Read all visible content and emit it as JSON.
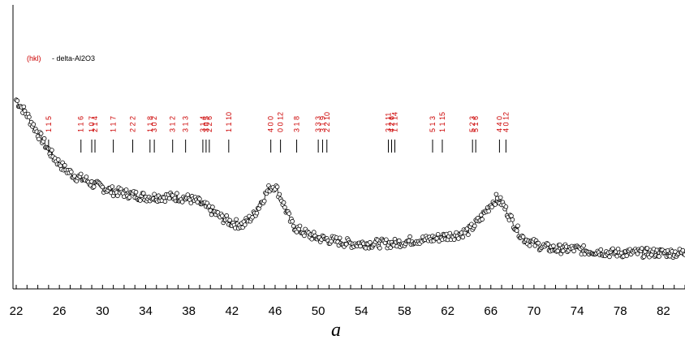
{
  "caption": "a",
  "chart_data": {
    "type": "scatter",
    "title": "",
    "xlabel": "",
    "ylabel": "",
    "xlim": [
      22,
      84
    ],
    "ylim": [
      0,
      100
    ],
    "x_ticks": [
      22,
      26,
      30,
      34,
      38,
      42,
      46,
      50,
      54,
      58,
      62,
      66,
      70,
      74,
      78,
      82
    ],
    "grid": false,
    "legend": {
      "position": "top-left",
      "hkl": "(hkl)",
      "phase": "- delta-Al2O3"
    },
    "series": [
      {
        "points": [
          [
            22,
            90
          ],
          [
            22.5,
            86
          ],
          [
            23,
            82
          ],
          [
            23.5,
            77
          ],
          [
            24,
            72
          ],
          [
            24.5,
            68
          ],
          [
            25,
            63
          ],
          [
            25.5,
            59
          ],
          [
            26,
            56
          ],
          [
            26.5,
            53
          ],
          [
            27,
            51
          ],
          [
            27.5,
            49
          ],
          [
            28,
            48
          ],
          [
            28.5,
            47
          ],
          [
            29,
            45
          ],
          [
            29.5,
            44
          ],
          [
            30,
            43
          ],
          [
            31,
            41
          ],
          [
            32,
            40
          ],
          [
            33,
            39
          ],
          [
            34,
            38
          ],
          [
            35,
            38
          ],
          [
            36,
            38
          ],
          [
            37,
            38
          ],
          [
            38,
            37
          ],
          [
            39,
            35
          ],
          [
            40,
            31
          ],
          [
            41,
            27
          ],
          [
            42,
            24
          ],
          [
            43,
            23
          ],
          [
            44,
            28
          ],
          [
            45,
            38
          ],
          [
            45.5,
            43
          ],
          [
            46,
            44
          ],
          [
            46.5,
            38
          ],
          [
            47,
            31
          ],
          [
            47.5,
            24
          ],
          [
            48,
            21
          ],
          [
            49,
            18
          ],
          [
            50,
            16
          ],
          [
            51,
            15
          ],
          [
            52,
            14
          ],
          [
            53,
            13
          ],
          [
            54,
            13
          ],
          [
            55,
            13
          ],
          [
            56,
            13
          ],
          [
            57,
            13
          ],
          [
            58,
            14
          ],
          [
            59,
            15
          ],
          [
            60,
            15
          ],
          [
            61,
            16
          ],
          [
            62,
            17
          ],
          [
            63,
            18
          ],
          [
            64,
            20
          ],
          [
            65,
            26
          ],
          [
            65.5,
            30
          ],
          [
            66,
            34
          ],
          [
            66.5,
            37
          ],
          [
            67,
            35
          ],
          [
            67.5,
            30
          ],
          [
            68,
            25
          ],
          [
            68.5,
            20
          ],
          [
            69,
            16
          ],
          [
            70,
            13
          ],
          [
            71,
            11
          ],
          [
            72,
            10
          ],
          [
            73,
            10
          ],
          [
            74,
            10
          ],
          [
            75,
            9
          ],
          [
            76,
            9
          ],
          [
            77,
            8
          ],
          [
            78,
            8
          ],
          [
            79,
            8
          ],
          [
            80,
            8
          ],
          [
            81,
            8
          ],
          [
            82,
            8
          ],
          [
            83,
            8
          ],
          [
            84,
            8
          ]
        ]
      }
    ],
    "reference_lines": [
      {
        "x": 25.0,
        "hkl": "1 1 5"
      },
      {
        "x": 28.0,
        "hkl": "1 1 6"
      },
      {
        "x": 29.0,
        "hkl": "1 0 7"
      },
      {
        "x": 29.3,
        "hkl": "2 1 4"
      },
      {
        "x": 31.0,
        "hkl": "1 1 7"
      },
      {
        "x": 32.8,
        "hkl": "2 2 2"
      },
      {
        "x": 34.4,
        "hkl": "1 1 8"
      },
      {
        "x": 34.8,
        "hkl": "3 0 2"
      },
      {
        "x": 36.5,
        "hkl": "3 1 2"
      },
      {
        "x": 37.7,
        "hkl": "3 1 3"
      },
      {
        "x": 39.3,
        "hkl": "3 1 4"
      },
      {
        "x": 39.6,
        "hkl": "3 0 5"
      },
      {
        "x": 39.9,
        "hkl": "2 2 6"
      },
      {
        "x": 41.7,
        "hkl": "1 1 10"
      },
      {
        "x": 45.6,
        "hkl": "4 0 0"
      },
      {
        "x": 46.5,
        "hkl": "0 0 12"
      },
      {
        "x": 48.0,
        "hkl": "3 1 8"
      },
      {
        "x": 50.0,
        "hkl": "3 3 3"
      },
      {
        "x": 50.4,
        "hkl": "3 1 9"
      },
      {
        "x": 50.8,
        "hkl": "2 2 10"
      },
      {
        "x": 56.5,
        "hkl": "3 1 11"
      },
      {
        "x": 56.8,
        "hkl": "4 2 6"
      },
      {
        "x": 57.1,
        "hkl": "1 1 14"
      },
      {
        "x": 60.6,
        "hkl": "5 1 3"
      },
      {
        "x": 61.5,
        "hkl": "1 1 15"
      },
      {
        "x": 64.3,
        "hkl": "5 2 3"
      },
      {
        "x": 64.6,
        "hkl": "5 1 6"
      },
      {
        "x": 66.8,
        "hkl": "4 4 0"
      },
      {
        "x": 67.4,
        "hkl": "4 0 12"
      }
    ]
  }
}
